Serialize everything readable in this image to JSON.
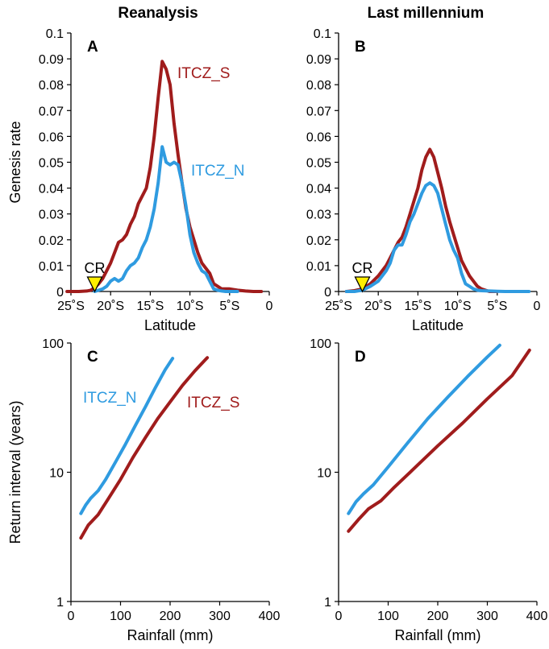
{
  "column_titles": [
    "Reanalysis",
    "Last millennium"
  ],
  "colors": {
    "itcz_s": "#a01c1c",
    "itcz_n": "#2f9be0",
    "marker_fill": "#ffee00",
    "axis": "#000000"
  },
  "marker_label": "CR",
  "chart_data": [
    {
      "panel": "A",
      "type": "line",
      "ylabel": "Genesis rate",
      "xlabel": "Latitude",
      "xlim": [
        -25,
        0
      ],
      "ylim": [
        0,
        0.1
      ],
      "xticks": [
        -25,
        -20,
        -15,
        -10,
        -5,
        0
      ],
      "xtick_labels": [
        "25˚S",
        "20˚S",
        "15˚S",
        "10˚S",
        "5˚S",
        "0"
      ],
      "yticks": [
        0,
        0.01,
        0.02,
        0.03,
        0.04,
        0.05,
        0.06,
        0.07,
        0.08,
        0.09,
        0.1
      ],
      "ytick_labels": [
        "0",
        "0.01",
        "0.02",
        "0.03",
        "0.04",
        "0.05",
        "0.06",
        "0.07",
        "0.08",
        "0.09",
        "0.1"
      ],
      "marker": {
        "label": "CR",
        "x": -22
      },
      "series": [
        {
          "name": "ITCZ_S",
          "color": "#a01c1c",
          "x": [
            -25.5,
            -24,
            -23,
            -22.5,
            -22,
            -21.5,
            -21,
            -20.5,
            -20,
            -19.5,
            -19,
            -18.5,
            -18,
            -17.5,
            -17,
            -16.5,
            -16,
            -15.5,
            -15,
            -14.5,
            -14,
            -13.5,
            -13,
            -12.5,
            -12,
            -11.5,
            -11,
            -10.5,
            -10,
            -9.5,
            -9,
            -8.5,
            -8,
            -7.5,
            -7,
            -6.5,
            -6,
            -5.5,
            -5,
            -4,
            -3,
            -2,
            -1
          ],
          "values": [
            0,
            0,
            0.0002,
            0.0005,
            0.0015,
            0.003,
            0.005,
            0.008,
            0.011,
            0.015,
            0.019,
            0.02,
            0.022,
            0.026,
            0.029,
            0.034,
            0.037,
            0.04,
            0.048,
            0.06,
            0.075,
            0.089,
            0.086,
            0.08,
            0.065,
            0.053,
            0.042,
            0.032,
            0.025,
            0.02,
            0.015,
            0.011,
            0.009,
            0.007,
            0.003,
            0.002,
            0.001,
            0.001,
            0.001,
            0.0005,
            0.0002,
            0,
            0
          ]
        },
        {
          "name": "ITCZ_N",
          "color": "#2f9be0",
          "x": [
            -22,
            -21.5,
            -21,
            -20.5,
            -20,
            -19.5,
            -19,
            -18.5,
            -18,
            -17.5,
            -17,
            -16.5,
            -16,
            -15.5,
            -15,
            -14.5,
            -14,
            -13.5,
            -13,
            -12.5,
            -12,
            -11.5,
            -11,
            -10.5,
            -10,
            -9.5,
            -9,
            -8.5,
            -8,
            -7.5,
            -7,
            -6.5,
            -6,
            -5.5,
            -5,
            -4.5,
            -4
          ],
          "values": [
            0,
            0.0005,
            0.001,
            0.002,
            0.004,
            0.005,
            0.004,
            0.005,
            0.008,
            0.01,
            0.011,
            0.013,
            0.017,
            0.02,
            0.025,
            0.032,
            0.042,
            0.056,
            0.05,
            0.049,
            0.05,
            0.049,
            0.042,
            0.033,
            0.022,
            0.015,
            0.011,
            0.008,
            0.007,
            0.004,
            0.001,
            0.0005,
            0.0002,
            0,
            0,
            0,
            0
          ]
        }
      ],
      "series_labels": [
        "ITCZ_S",
        "ITCZ_N"
      ]
    },
    {
      "panel": "B",
      "type": "line",
      "ylabel": "",
      "xlabel": "Latitude",
      "xlim": [
        -25,
        0
      ],
      "ylim": [
        0,
        0.1
      ],
      "xticks": [
        -25,
        -20,
        -15,
        -10,
        -5,
        0
      ],
      "xtick_labels": [
        "25˚S",
        "20˚S",
        "15˚S",
        "10˚S",
        "5˚S",
        "0"
      ],
      "yticks": [
        0,
        0.01,
        0.02,
        0.03,
        0.04,
        0.05,
        0.06,
        0.07,
        0.08,
        0.09,
        0.1
      ],
      "ytick_labels": [
        "0",
        "0.01",
        "0.02",
        "0.03",
        "0.04",
        "0.05",
        "0.06",
        "0.07",
        "0.08",
        "0.09",
        "0.1"
      ],
      "marker": {
        "label": "CR",
        "x": -22
      },
      "series": [
        {
          "name": "ITCZ_S",
          "color": "#a01c1c",
          "x": [
            -24,
            -23,
            -22,
            -21,
            -20,
            -19,
            -18.5,
            -18,
            -17.5,
            -17,
            -16.5,
            -16,
            -15.5,
            -15,
            -14.5,
            -14,
            -13.5,
            -13,
            -12.5,
            -12,
            -11.5,
            -11,
            -10.5,
            -10,
            -9.5,
            -9,
            -8.5,
            -8,
            -7.5,
            -7,
            -6,
            -5
          ],
          "values": [
            0,
            0.0003,
            0.001,
            0.003,
            0.006,
            0.01,
            0.013,
            0.016,
            0.019,
            0.021,
            0.025,
            0.03,
            0.035,
            0.04,
            0.047,
            0.052,
            0.055,
            0.052,
            0.046,
            0.04,
            0.033,
            0.027,
            0.022,
            0.017,
            0.012,
            0.009,
            0.006,
            0.004,
            0.002,
            0.001,
            0,
            0
          ]
        },
        {
          "name": "ITCZ_N",
          "color": "#2f9be0",
          "x": [
            -24,
            -23,
            -22,
            -21,
            -20,
            -19,
            -18.5,
            -18,
            -17.5,
            -17,
            -16.5,
            -16,
            -15.5,
            -15,
            -14.5,
            -14,
            -13.5,
            -13,
            -12.5,
            -12,
            -11.5,
            -11,
            -10.5,
            -10,
            -9.5,
            -9,
            -8.5,
            -8,
            -7.5,
            -7,
            -6,
            -5,
            -4,
            -3,
            -2,
            -1
          ],
          "values": [
            0,
            0,
            0.0005,
            0.002,
            0.004,
            0.008,
            0.011,
            0.016,
            0.018,
            0.018,
            0.022,
            0.027,
            0.03,
            0.034,
            0.038,
            0.041,
            0.042,
            0.041,
            0.038,
            0.032,
            0.026,
            0.02,
            0.016,
            0.013,
            0.007,
            0.003,
            0.002,
            0.001,
            0.0005,
            0.0003,
            0.0002,
            0.0001,
            0,
            0,
            0,
            0
          ]
        }
      ]
    },
    {
      "panel": "C",
      "type": "line",
      "ylabel": "Return interval (years)",
      "xlabel": "Rainfall (mm)",
      "yscale": "log",
      "xlim": [
        0,
        400
      ],
      "ylim": [
        1,
        100
      ],
      "xticks": [
        0,
        100,
        200,
        300,
        400
      ],
      "xtick_labels": [
        "0",
        "100",
        "200",
        "300",
        "400"
      ],
      "yticks": [
        1,
        10,
        100
      ],
      "ytick_labels": [
        "1",
        "10",
        "100"
      ],
      "series": [
        {
          "name": "ITCZ_N",
          "color": "#2f9be0",
          "x": [
            20,
            30,
            40,
            55,
            70,
            90,
            110,
            130,
            150,
            170,
            190,
            205
          ],
          "values": [
            4.8,
            5.6,
            6.3,
            7.2,
            8.8,
            12,
            16.5,
            23,
            32,
            45,
            62,
            76
          ]
        },
        {
          "name": "ITCZ_S",
          "color": "#a01c1c",
          "x": [
            20,
            35,
            55,
            75,
            100,
            125,
            150,
            175,
            200,
            225,
            250,
            275
          ],
          "values": [
            3.1,
            3.9,
            4.7,
            6.2,
            8.8,
            13,
            18.5,
            26,
            35,
            47,
            61,
            77
          ]
        }
      ],
      "series_labels": [
        "ITCZ_N",
        "ITCZ_S"
      ]
    },
    {
      "panel": "D",
      "type": "line",
      "ylabel": "",
      "xlabel": "Rainfall (mm)",
      "yscale": "log",
      "xlim": [
        0,
        400
      ],
      "ylim": [
        1,
        100
      ],
      "xticks": [
        0,
        100,
        200,
        300,
        400
      ],
      "xtick_labels": [
        "0",
        "100",
        "200",
        "300",
        "400"
      ],
      "yticks": [
        1,
        10,
        100
      ],
      "ytick_labels": [
        "1",
        "10",
        "100"
      ],
      "series": [
        {
          "name": "ITCZ_N",
          "color": "#2f9be0",
          "x": [
            20,
            35,
            50,
            70,
            100,
            140,
            180,
            220,
            260,
            300,
            325
          ],
          "values": [
            4.8,
            5.9,
            6.8,
            8.0,
            11,
            17,
            26,
            38,
            55,
            78,
            96
          ]
        },
        {
          "name": "ITCZ_S",
          "color": "#a01c1c",
          "x": [
            20,
            40,
            60,
            85,
            110,
            150,
            200,
            250,
            300,
            350,
            385
          ],
          "values": [
            3.5,
            4.3,
            5.2,
            6.0,
            7.5,
            10.5,
            16,
            24,
            37,
            56,
            88
          ]
        }
      ]
    }
  ]
}
